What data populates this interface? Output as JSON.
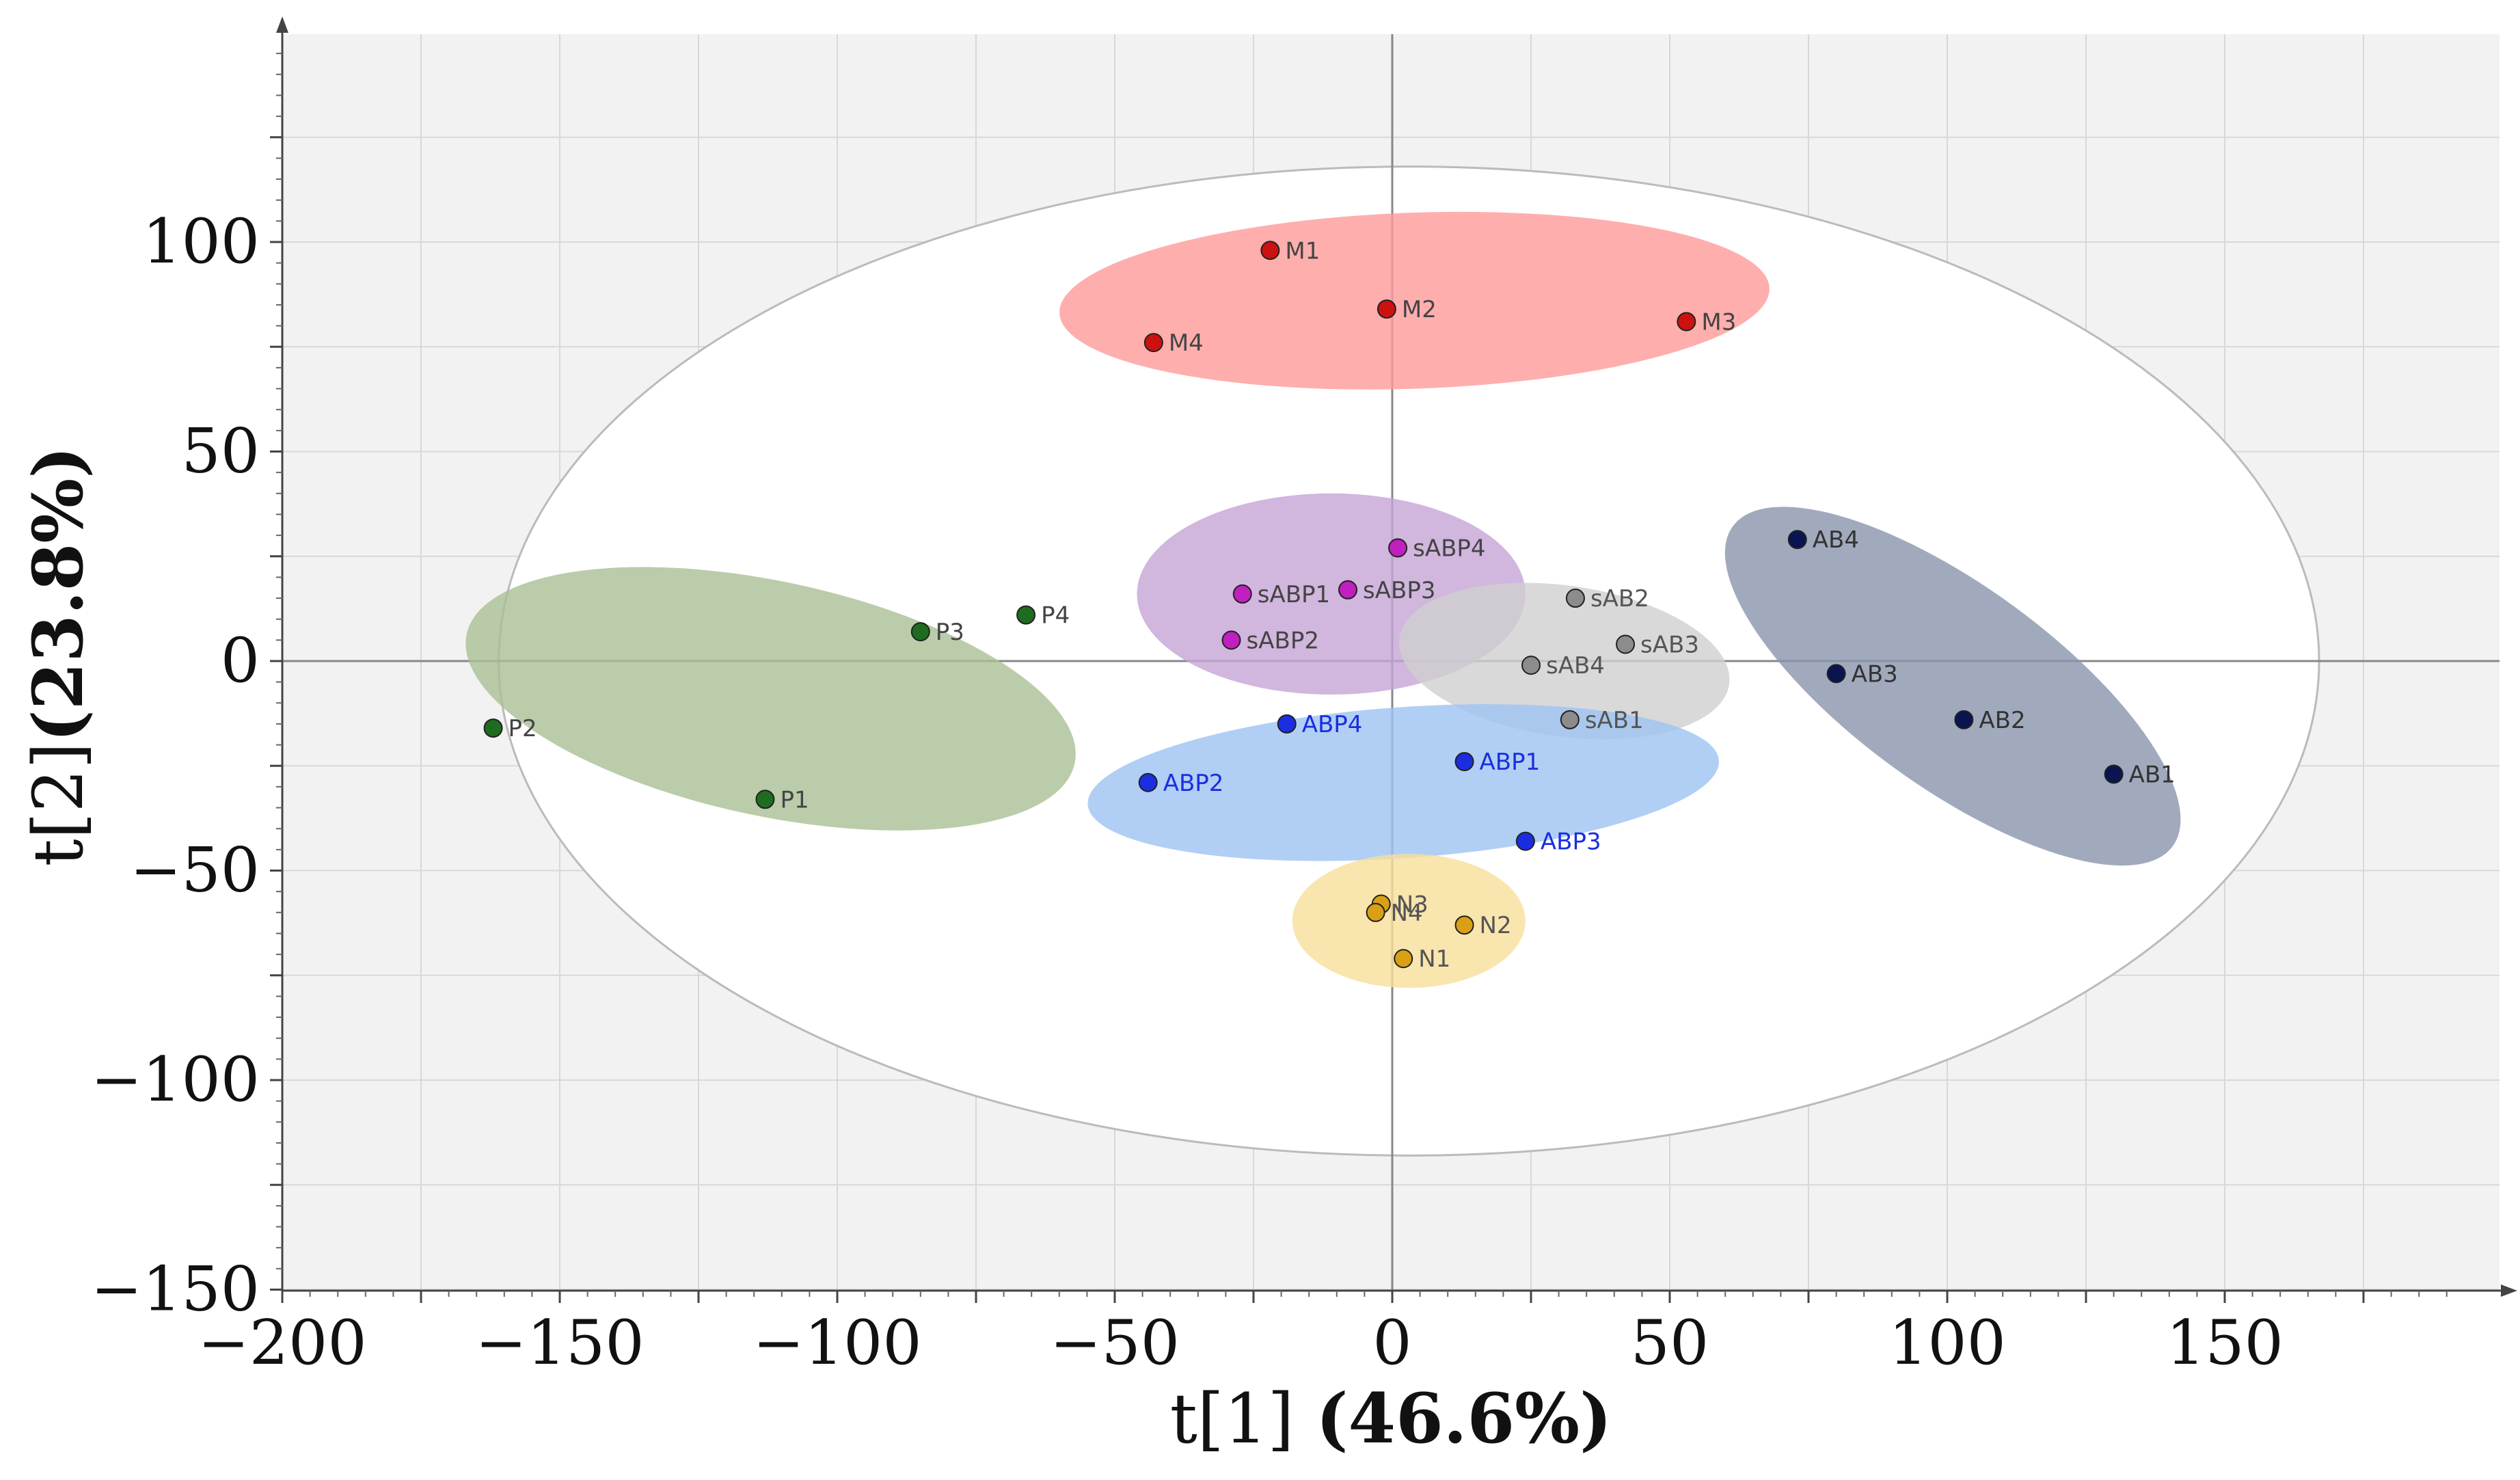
{
  "chart_data": {
    "type": "scatter",
    "title": "",
    "xlabel": {
      "prefix": "t[1] ",
      "percent": "(46.6%)"
    },
    "ylabel": {
      "prefix": "t[2]",
      "percent": "(23.8%)"
    },
    "xlim": [
      -200,
      200
    ],
    "ylim": [
      -150,
      150
    ],
    "x_ticks": [
      -200,
      -150,
      -100,
      -50,
      0,
      50,
      100,
      150
    ],
    "y_ticks": [
      -150,
      -100,
      -50,
      0,
      50,
      100
    ],
    "x_tick_labels": [
      "−200",
      "−150",
      "−100",
      "−50",
      "0",
      "50",
      "100",
      "150"
    ],
    "y_tick_labels": [
      "−150",
      "−100",
      "−50",
      "0",
      "50",
      "100"
    ],
    "grid": true,
    "hotelling_ellipse": {
      "cx": 3,
      "cy": 0,
      "rx": 164,
      "ry": 118
    },
    "groups": [
      {
        "name": "M",
        "color": "#cc1111",
        "fill": "#ff9a9a",
        "label_color": "#444444",
        "ellipse": {
          "cx": 4,
          "cy": 86,
          "rx": 64,
          "ry": 21,
          "angle": -2
        },
        "points": [
          {
            "label": "M1",
            "x": -22,
            "y": 98
          },
          {
            "label": "M2",
            "x": -1,
            "y": 84
          },
          {
            "label": "M3",
            "x": 53,
            "y": 81
          },
          {
            "label": "M4",
            "x": -43,
            "y": 76
          }
        ]
      },
      {
        "name": "P",
        "color": "#1f6b1f",
        "fill": "#a9bf93",
        "label_color": "#444444",
        "ellipse": {
          "cx": -112,
          "cy": -9,
          "rx": 56,
          "ry": 28,
          "angle": 12
        },
        "points": [
          {
            "label": "P1",
            "x": -113,
            "y": -33
          },
          {
            "label": "P2",
            "x": -162,
            "y": -16
          },
          {
            "label": "P3",
            "x": -85,
            "y": 7
          },
          {
            "label": "P4",
            "x": -66,
            "y": 11
          }
        ]
      },
      {
        "name": "sABP",
        "color": "#c020c0",
        "fill": "#c6a4d6",
        "label_color": "#444444",
        "ellipse": {
          "cx": -11,
          "cy": 16,
          "rx": 35,
          "ry": 24,
          "angle": 0
        },
        "points": [
          {
            "label": "sABP1",
            "x": -27,
            "y": 16
          },
          {
            "label": "sABP2",
            "x": -29,
            "y": 5
          },
          {
            "label": "sABP3",
            "x": -8,
            "y": 17
          },
          {
            "label": "sABP4",
            "x": 1,
            "y": 27
          }
        ]
      },
      {
        "name": "sAB",
        "color": "#8c8c8c",
        "fill": "#cfcfcf",
        "label_color": "#555555",
        "ellipse": {
          "cx": 31,
          "cy": 0,
          "rx": 30,
          "ry": 18,
          "angle": 8
        },
        "points": [
          {
            "label": "sAB1",
            "x": 32,
            "y": -14
          },
          {
            "label": "sAB2",
            "x": 33,
            "y": 15
          },
          {
            "label": "sAB3",
            "x": 42,
            "y": 4
          },
          {
            "label": "sAB4",
            "x": 25,
            "y": -1
          }
        ]
      },
      {
        "name": "ABP",
        "color": "#1a2ee0",
        "fill": "#9ec3f3",
        "label_color": "#1a2ee0",
        "ellipse": {
          "cx": 2,
          "cy": -29,
          "rx": 57,
          "ry": 18,
          "angle": -4
        },
        "points": [
          {
            "label": "ABP1",
            "x": 13,
            "y": -24
          },
          {
            "label": "ABP2",
            "x": -44,
            "y": -29
          },
          {
            "label": "ABP3",
            "x": 24,
            "y": -43
          },
          {
            "label": "ABP4",
            "x": -19,
            "y": -15
          }
        ]
      },
      {
        "name": "AB",
        "color": "#0a1450",
        "fill": "#8a95ad",
        "label_color": "#333333",
        "ellipse": {
          "cx": 101,
          "cy": -6,
          "rx": 49,
          "ry": 24,
          "angle": 36
        },
        "points": [
          {
            "label": "AB1",
            "x": 130,
            "y": -27
          },
          {
            "label": "AB2",
            "x": 103,
            "y": -14
          },
          {
            "label": "AB3",
            "x": 80,
            "y": -3
          },
          {
            "label": "AB4",
            "x": 73,
            "y": 29
          }
        ]
      },
      {
        "name": "N",
        "color": "#d9a016",
        "fill": "#f8df9a",
        "label_color": "#555555",
        "ellipse": {
          "cx": 3,
          "cy": -62,
          "rx": 21,
          "ry": 16,
          "angle": 0
        },
        "points": [
          {
            "label": "N1",
            "x": 2,
            "y": -71
          },
          {
            "label": "N2",
            "x": 13,
            "y": -63
          },
          {
            "label": "N3",
            "x": -2,
            "y": -58
          },
          {
            "label": "N4",
            "x": -3,
            "y": -60
          }
        ]
      }
    ]
  }
}
